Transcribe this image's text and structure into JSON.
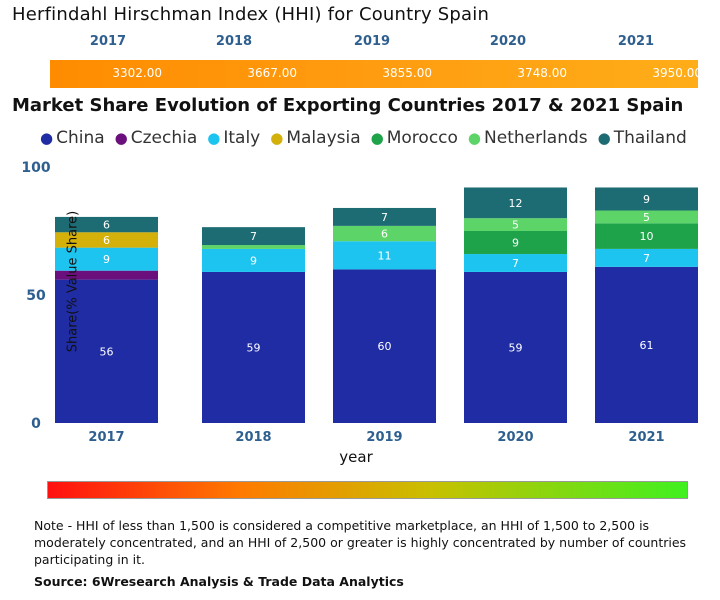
{
  "hhi": {
    "title": "Herfindahl Hirschman Index (HHI) for Country Spain",
    "years": [
      "2017",
      "2018",
      "2019",
      "2020",
      "2021"
    ],
    "values": [
      "3302.00",
      "3667.00",
      "3855.00",
      "3748.00",
      "3950.00"
    ],
    "bar_color": "#ff9500"
  },
  "chart_data": {
    "type": "bar",
    "stacked": true,
    "title": "Market Share Evolution of Exporting Countries 2017 & 2021 Spain",
    "xlabel": "year",
    "ylabel": "Share(% Value Share)",
    "categories": [
      "2017",
      "2018",
      "2019",
      "2020",
      "2021"
    ],
    "yticks": [
      "0",
      "50",
      "100"
    ],
    "ylim": [
      0,
      100
    ],
    "series": [
      {
        "name": "China",
        "color": "#1f2ca3",
        "values": [
          56,
          59,
          60,
          59,
          61
        ],
        "labels": [
          "56",
          "59",
          "60",
          "59",
          "61"
        ]
      },
      {
        "name": "Czechia",
        "color": "#6a0f7c",
        "values": [
          3.5,
          0,
          0,
          0,
          0
        ],
        "labels": [
          "",
          "",
          "",
          "",
          ""
        ]
      },
      {
        "name": "Italy",
        "color": "#1ec4f0",
        "values": [
          9,
          9,
          11,
          7,
          7
        ],
        "labels": [
          "9",
          "9",
          "11",
          "7",
          "7"
        ]
      },
      {
        "name": "Malaysia",
        "color": "#d4b00a",
        "values": [
          6,
          0,
          0,
          0,
          0
        ],
        "labels": [
          "6",
          "",
          "",
          "",
          ""
        ]
      },
      {
        "name": "Morocco",
        "color": "#1ea34a",
        "values": [
          0,
          0,
          0,
          9,
          10
        ],
        "labels": [
          "",
          "",
          "",
          "9",
          "10"
        ]
      },
      {
        "name": "Netherlands",
        "color": "#5dd468",
        "values": [
          0,
          1.5,
          6,
          5,
          5
        ],
        "labels": [
          "",
          "",
          "6",
          "5",
          "5"
        ]
      },
      {
        "name": "Thailand",
        "color": "#1d6b73",
        "values": [
          6,
          7,
          7,
          12,
          9
        ],
        "labels": [
          "6",
          "7",
          "7",
          "12",
          "9"
        ]
      }
    ]
  },
  "scale": {
    "description": "competitive to highly concentrated color scale"
  },
  "note": "Note - HHI of less than 1,500 is considered a competitive marketplace, an HHI of 1,500 to 2,500 is moderately concentrated, and an HHI of 2,500 or greater is highly concentrated by number of countries participating in it.",
  "source": "Source: 6Wresearch Analysis & Trade Data Analytics"
}
